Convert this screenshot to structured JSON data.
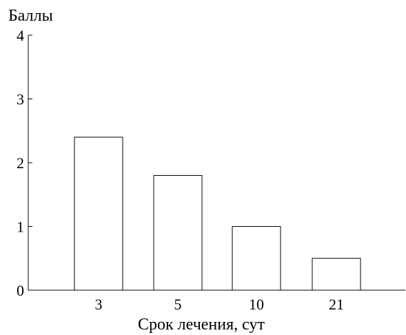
{
  "chart_data": {
    "type": "bar",
    "ylabel": "Баллы",
    "xlabel": "Срок лечения, сут",
    "categories": [
      "3",
      "5",
      "10",
      "21"
    ],
    "values": [
      2.4,
      1.8,
      1.0,
      0.5
    ],
    "ylim": [
      0,
      4
    ],
    "yticks": [
      "0",
      "1",
      "2",
      "3",
      "4"
    ],
    "grid": false,
    "legend": "none"
  }
}
